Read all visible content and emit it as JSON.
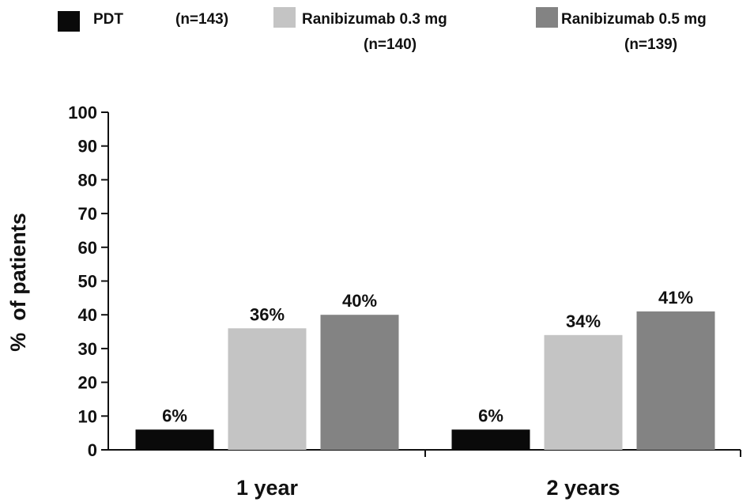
{
  "chart_data": {
    "type": "bar",
    "categories": [
      "1 year",
      "2 years"
    ],
    "series": [
      {
        "name": "PDT",
        "n_label": "(n=143)",
        "color": "#0a0a0a",
        "values": [
          6,
          6
        ],
        "labels": [
          "6%",
          "6%"
        ]
      },
      {
        "name": "Ranibizumab 0.3 mg",
        "n_label": "(n=140)",
        "color": "#c4c4c4",
        "values": [
          36,
          34
        ],
        "labels": [
          "36%",
          "34%"
        ]
      },
      {
        "name": "Ranibizumab 0.5 mg",
        "n_label": "(n=139)",
        "color": "#838383",
        "values": [
          40,
          41
        ],
        "labels": [
          "40%",
          "41%"
        ]
      }
    ],
    "ylabel": "%  of patients",
    "ylim": [
      0,
      100
    ],
    "yticks": [
      0,
      10,
      20,
      30,
      40,
      50,
      60,
      70,
      80,
      90,
      100
    ],
    "grid": false,
    "legend_position": "top"
  }
}
